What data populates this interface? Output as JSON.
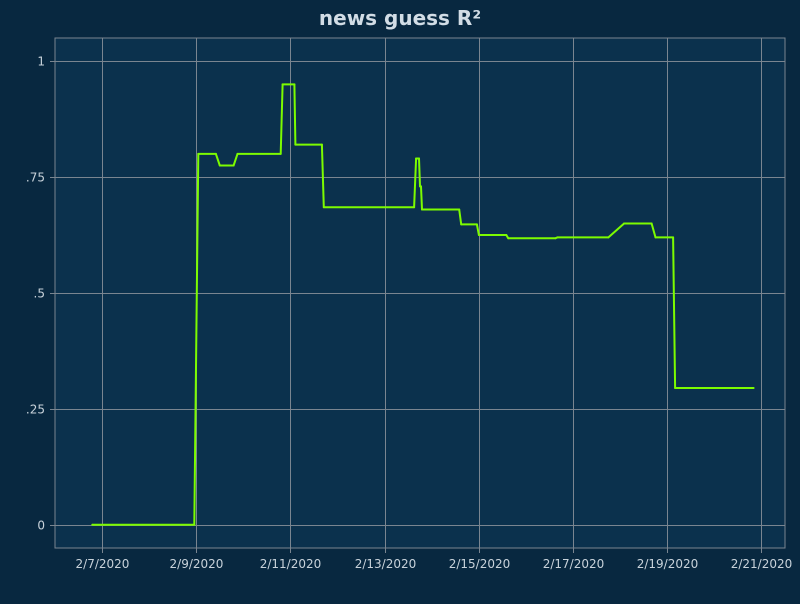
{
  "chart_data": {
    "type": "line",
    "title": "news guess R²",
    "xlabel": "",
    "ylabel": "",
    "grid": true,
    "x_axis": {
      "type": "date",
      "range": [
        "2020-02-06T00:00",
        "2020-02-21T12:00"
      ],
      "ticks": [
        "2020-02-07",
        "2020-02-09",
        "2020-02-11",
        "2020-02-13",
        "2020-02-15",
        "2020-02-17",
        "2020-02-19",
        "2020-02-21"
      ],
      "tick_labels": [
        "2/7/2020",
        "2/9/2020",
        "2/11/2020",
        "2/13/2020",
        "2/15/2020",
        "2/17/2020",
        "2/19/2020",
        "2/21/2020"
      ]
    },
    "y_axis": {
      "range": [
        -0.05,
        1.05
      ],
      "ticks": [
        0,
        0.25,
        0.5,
        0.75,
        1
      ],
      "tick_labels": [
        "0",
        ".25",
        ".5",
        ".75",
        "1"
      ]
    },
    "colors": {
      "background": "#082840",
      "plot_background": "#0b314d",
      "grid": "#7a8590",
      "axis_text": "#c8d2da",
      "title": "#d2dde6",
      "series": "#7cfc00"
    },
    "series": [
      {
        "color": "#7cfc00",
        "points": [
          {
            "x": "2020-02-06T19:00",
            "y": 0
          },
          {
            "x": "2020-02-08T23:00",
            "y": 0
          },
          {
            "x": "2020-02-09T01:00",
            "y": 0.8
          },
          {
            "x": "2020-02-09T10:00",
            "y": 0.8
          },
          {
            "x": "2020-02-09T12:00",
            "y": 0.775
          },
          {
            "x": "2020-02-09T19:00",
            "y": 0.775
          },
          {
            "x": "2020-02-09T21:00",
            "y": 0.8
          },
          {
            "x": "2020-02-10T19:00",
            "y": 0.8
          },
          {
            "x": "2020-02-10T20:00",
            "y": 0.95
          },
          {
            "x": "2020-02-11T02:00",
            "y": 0.95
          },
          {
            "x": "2020-02-11T02:30",
            "y": 0.82
          },
          {
            "x": "2020-02-11T16:00",
            "y": 0.82
          },
          {
            "x": "2020-02-11T17:00",
            "y": 0.685
          },
          {
            "x": "2020-02-13T15:00",
            "y": 0.685
          },
          {
            "x": "2020-02-13T16:00",
            "y": 0.79
          },
          {
            "x": "2020-02-13T17:30",
            "y": 0.79
          },
          {
            "x": "2020-02-13T18:00",
            "y": 0.73
          },
          {
            "x": "2020-02-13T18:30",
            "y": 0.73
          },
          {
            "x": "2020-02-13T19:00",
            "y": 0.68
          },
          {
            "x": "2020-02-14T14:00",
            "y": 0.68
          },
          {
            "x": "2020-02-14T15:00",
            "y": 0.648
          },
          {
            "x": "2020-02-14T23:00",
            "y": 0.648
          },
          {
            "x": "2020-02-15T00:00",
            "y": 0.625
          },
          {
            "x": "2020-02-15T14:00",
            "y": 0.625
          },
          {
            "x": "2020-02-15T15:00",
            "y": 0.618
          },
          {
            "x": "2020-02-16T15:00",
            "y": 0.618
          },
          {
            "x": "2020-02-16T16:00",
            "y": 0.62
          },
          {
            "x": "2020-02-17T18:00",
            "y": 0.62
          },
          {
            "x": "2020-02-18T02:00",
            "y": 0.65
          },
          {
            "x": "2020-02-18T16:00",
            "y": 0.65
          },
          {
            "x": "2020-02-18T18:00",
            "y": 0.62
          },
          {
            "x": "2020-02-19T03:00",
            "y": 0.62
          },
          {
            "x": "2020-02-19T04:00",
            "y": 0.295
          },
          {
            "x": "2020-02-20T20:00",
            "y": 0.295
          }
        ]
      }
    ]
  }
}
